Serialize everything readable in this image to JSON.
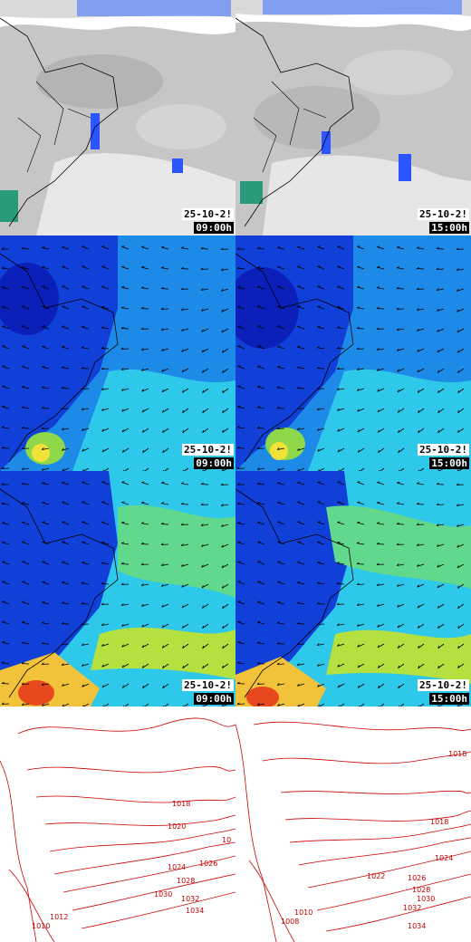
{
  "rows": [
    {
      "kind": "satellite",
      "panels": [
        {
          "date": "25-10-2!",
          "time": "09:00h"
        },
        {
          "date": "25-10-2!",
          "time": "15:00h"
        }
      ]
    },
    {
      "kind": "wind-low",
      "panels": [
        {
          "date": "25-10-2!",
          "time": "09:00h"
        },
        {
          "date": "25-10-2!",
          "time": "15:00h"
        }
      ]
    },
    {
      "kind": "wind-high",
      "panels": [
        {
          "date": "25-10-2!",
          "time": "09:00h"
        },
        {
          "date": "25-10-2!",
          "time": "15:00h"
        }
      ]
    },
    {
      "kind": "pressure",
      "panels": [
        {
          "labels": [
            "1018",
            "1020",
            "10",
            "1024",
            "1026",
            "1028",
            "1030",
            "1032",
            "1034",
            "1010",
            "1012"
          ]
        },
        {
          "labels": [
            "1018",
            "1018",
            "1024",
            "1022",
            "1026",
            "1028",
            "1030",
            "1032",
            "1034",
            "1008",
            "1010"
          ]
        }
      ]
    }
  ],
  "colors": {
    "satellite_cloud": "#c9c9c9",
    "satellite_clear": "#ffffff",
    "precip": "#2b55ff",
    "wind_low": "#0a2fd0",
    "wind_mid": "#1fb5e8",
    "wind_high": "#f8e43a",
    "wind_max": "#e8481e",
    "isobar": "#cc0000",
    "border": "#000000"
  }
}
